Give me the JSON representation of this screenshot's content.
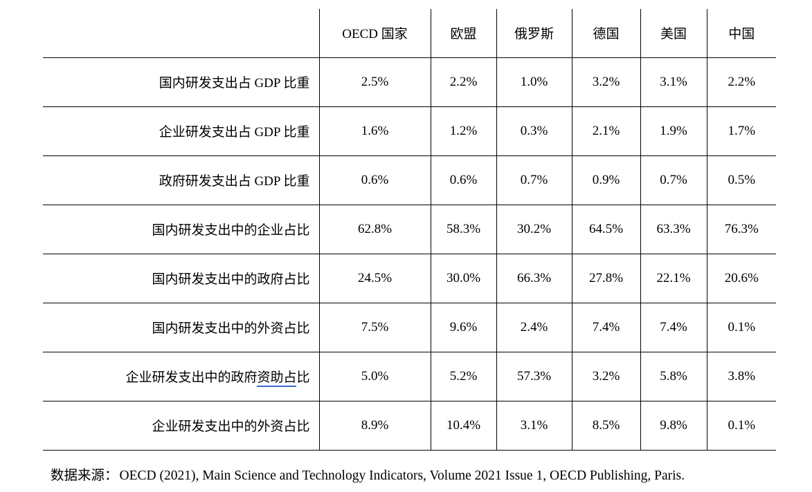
{
  "table": {
    "columns": [
      "OECD 国家",
      "欧盟",
      "俄罗斯",
      "德国",
      "美国",
      "中国"
    ],
    "rows": [
      {
        "label": "国内研发支出占 GDP 比重",
        "values": [
          "2.5%",
          "2.2%",
          "1.0%",
          "3.2%",
          "3.1%",
          "2.2%"
        ]
      },
      {
        "label": "企业研发支出占 GDP 比重",
        "values": [
          "1.6%",
          "1.2%",
          "0.3%",
          "2.1%",
          "1.9%",
          "1.7%"
        ]
      },
      {
        "label": "政府研发支出占 GDP 比重",
        "values": [
          "0.6%",
          "0.6%",
          "0.7%",
          "0.9%",
          "0.7%",
          "0.5%"
        ]
      },
      {
        "label": "国内研发支出中的企业占比",
        "values": [
          "62.8%",
          "58.3%",
          "30.2%",
          "64.5%",
          "63.3%",
          "76.3%"
        ]
      },
      {
        "label": "国内研发支出中的政府占比",
        "values": [
          "24.5%",
          "30.0%",
          "66.3%",
          "27.8%",
          "22.1%",
          "20.6%"
        ]
      },
      {
        "label": "国内研发支出中的外资占比",
        "values": [
          "7.5%",
          "9.6%",
          "2.4%",
          "7.4%",
          "7.4%",
          "0.1%"
        ]
      },
      {
        "label_prefix": "企业研发支出中的政府",
        "label_underlined": "资助占",
        "label_suffix": "比",
        "values": [
          "5.0%",
          "5.2%",
          "57.3%",
          "3.2%",
          "5.8%",
          "3.8%"
        ]
      },
      {
        "label": "企业研发支出中的外资占比",
        "values": [
          "8.9%",
          "10.4%",
          "3.1%",
          "8.5%",
          "9.8%",
          "0.1%"
        ]
      }
    ]
  },
  "footer": {
    "source_label": "数据来源：",
    "source_text": "OECD (2021), Main Science and Technology Indicators, Volume 2021 Issue 1, OECD Publishing, Paris."
  },
  "colors": {
    "background": "#FFFFFF",
    "text": "#000000",
    "table_border": "#000000",
    "proofing_underline": "#3A67D2"
  }
}
